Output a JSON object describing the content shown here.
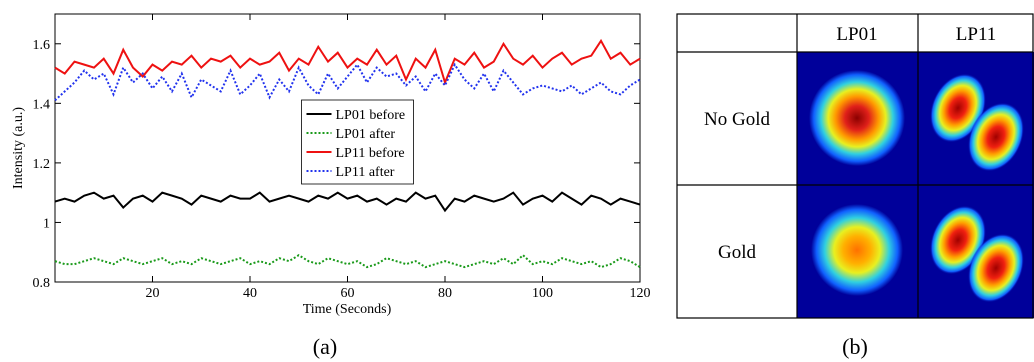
{
  "chart_data": {
    "type": "line",
    "x_label": "Time (Seconds)",
    "y_label": "Intensity (a.u.)",
    "caption": "(a)",
    "xlim": [
      0,
      120
    ],
    "xticks": [
      20,
      40,
      60,
      80,
      100,
      120
    ],
    "ylim": [
      0.8,
      1.7
    ],
    "yticks": [
      0.8,
      1,
      1.2,
      1.4,
      1.6
    ],
    "x": [
      0,
      2,
      4,
      6,
      8,
      10,
      12,
      14,
      16,
      18,
      20,
      22,
      24,
      26,
      28,
      30,
      32,
      34,
      36,
      38,
      40,
      42,
      44,
      46,
      48,
      50,
      52,
      54,
      56,
      58,
      60,
      62,
      64,
      66,
      68,
      70,
      72,
      74,
      76,
      78,
      80,
      82,
      84,
      86,
      88,
      90,
      92,
      94,
      96,
      98,
      100,
      102,
      104,
      106,
      108,
      110,
      112,
      114,
      116,
      118,
      120
    ],
    "series": [
      {
        "name": "LP01 before",
        "color": "#000000",
        "style": "solid",
        "values": [
          1.07,
          1.08,
          1.07,
          1.09,
          1.1,
          1.08,
          1.09,
          1.05,
          1.08,
          1.09,
          1.07,
          1.1,
          1.09,
          1.08,
          1.06,
          1.09,
          1.08,
          1.07,
          1.09,
          1.08,
          1.08,
          1.1,
          1.07,
          1.08,
          1.09,
          1.08,
          1.07,
          1.09,
          1.08,
          1.1,
          1.08,
          1.09,
          1.07,
          1.08,
          1.06,
          1.08,
          1.07,
          1.1,
          1.08,
          1.09,
          1.04,
          1.08,
          1.07,
          1.09,
          1.08,
          1.07,
          1.08,
          1.1,
          1.06,
          1.08,
          1.09,
          1.07,
          1.1,
          1.08,
          1.06,
          1.09,
          1.08,
          1.06,
          1.08,
          1.07,
          1.06
        ]
      },
      {
        "name": "LP01 after",
        "color": "#1a9a1a",
        "style": "dotted",
        "values": [
          0.87,
          0.86,
          0.86,
          0.87,
          0.88,
          0.87,
          0.86,
          0.88,
          0.87,
          0.86,
          0.87,
          0.88,
          0.86,
          0.87,
          0.86,
          0.88,
          0.87,
          0.86,
          0.87,
          0.88,
          0.86,
          0.87,
          0.86,
          0.88,
          0.87,
          0.89,
          0.87,
          0.86,
          0.88,
          0.87,
          0.86,
          0.87,
          0.85,
          0.86,
          0.88,
          0.87,
          0.86,
          0.87,
          0.85,
          0.86,
          0.87,
          0.86,
          0.85,
          0.86,
          0.87,
          0.86,
          0.88,
          0.86,
          0.89,
          0.86,
          0.87,
          0.86,
          0.88,
          0.87,
          0.86,
          0.87,
          0.85,
          0.86,
          0.88,
          0.87,
          0.85
        ]
      },
      {
        "name": "LP11 before",
        "color": "#ee1111",
        "style": "solid",
        "values": [
          1.52,
          1.5,
          1.54,
          1.53,
          1.52,
          1.55,
          1.5,
          1.58,
          1.52,
          1.49,
          1.53,
          1.51,
          1.54,
          1.53,
          1.56,
          1.52,
          1.55,
          1.54,
          1.56,
          1.52,
          1.55,
          1.53,
          1.54,
          1.57,
          1.51,
          1.55,
          1.53,
          1.59,
          1.54,
          1.57,
          1.52,
          1.55,
          1.53,
          1.58,
          1.53,
          1.56,
          1.48,
          1.55,
          1.52,
          1.58,
          1.47,
          1.55,
          1.53,
          1.57,
          1.52,
          1.54,
          1.6,
          1.55,
          1.53,
          1.56,
          1.52,
          1.55,
          1.57,
          1.53,
          1.55,
          1.56,
          1.61,
          1.55,
          1.57,
          1.53,
          1.55
        ]
      },
      {
        "name": "LP11 after",
        "color": "#2233ee",
        "style": "dotted",
        "values": [
          1.41,
          1.44,
          1.47,
          1.51,
          1.48,
          1.5,
          1.43,
          1.52,
          1.47,
          1.5,
          1.45,
          1.49,
          1.44,
          1.5,
          1.42,
          1.48,
          1.46,
          1.44,
          1.51,
          1.43,
          1.46,
          1.5,
          1.42,
          1.48,
          1.44,
          1.52,
          1.46,
          1.43,
          1.5,
          1.45,
          1.49,
          1.53,
          1.47,
          1.52,
          1.49,
          1.5,
          1.46,
          1.49,
          1.44,
          1.5,
          1.46,
          1.53,
          1.48,
          1.45,
          1.5,
          1.44,
          1.51,
          1.47,
          1.43,
          1.45,
          1.46,
          1.45,
          1.44,
          1.46,
          1.43,
          1.45,
          1.47,
          1.44,
          1.43,
          1.46,
          1.48
        ]
      }
    ],
    "legend": "center"
  },
  "table": {
    "columns": [
      "LP01",
      "LP11"
    ],
    "rows": [
      "No Gold",
      "Gold"
    ],
    "caption": "(b)"
  }
}
